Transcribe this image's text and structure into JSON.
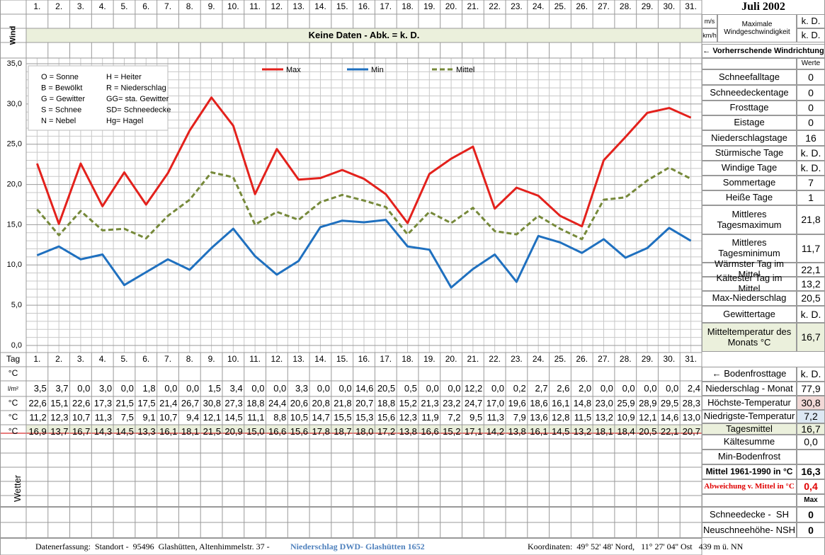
{
  "header": {
    "title": "Juli 2002",
    "wind_label": "Wind",
    "no_data": "Keine Daten - Abk. = k. D.",
    "units": [
      "m/s",
      "km/h"
    ],
    "max_wind_label": "Maximale Windgeschwindigkeit",
    "max_wind_values": [
      "k. D.",
      "k. D."
    ],
    "wind_direction": "← Vorherrschende Windrichtung"
  },
  "chart_data": {
    "type": "line",
    "categories": [
      "1.",
      "2.",
      "3.",
      "4.",
      "5.",
      "6.",
      "7.",
      "8.",
      "9.",
      "10.",
      "11.",
      "12.",
      "13.",
      "14.",
      "15.",
      "16.",
      "17.",
      "18.",
      "19.",
      "20.",
      "21.",
      "22.",
      "23.",
      "24.",
      "25.",
      "26.",
      "27.",
      "28.",
      "29.",
      "30.",
      "31."
    ],
    "ylim": [
      0,
      35
    ],
    "yticks": [
      {
        "value": 0,
        "label": "0,0"
      },
      {
        "value": 5,
        "label": "5,0"
      },
      {
        "value": 10,
        "label": "10,0"
      },
      {
        "value": 15,
        "label": "15,0"
      },
      {
        "value": 20,
        "label": "20,0"
      },
      {
        "value": 25,
        "label": "25,0"
      },
      {
        "value": 30,
        "label": "30,0"
      },
      {
        "value": 35,
        "label": "35,0"
      }
    ],
    "grid": true,
    "legend": "top",
    "series": [
      {
        "name": "Max",
        "color": "#e3211c",
        "values": [
          22.6,
          15.1,
          22.6,
          17.3,
          21.5,
          17.5,
          21.4,
          26.7,
          30.8,
          27.3,
          18.8,
          24.4,
          20.6,
          20.8,
          21.8,
          20.7,
          18.8,
          15.2,
          21.3,
          23.2,
          24.7,
          17.0,
          19.6,
          18.6,
          16.1,
          14.8,
          23.0,
          25.9,
          28.9,
          29.5,
          28.3
        ],
        "value_labels": [
          "22,6",
          "15,1",
          "22,6",
          "17,3",
          "21,5",
          "17,5",
          "21,4",
          "26,7",
          "30,8",
          "27,3",
          "18,8",
          "24,4",
          "20,6",
          "20,8",
          "21,8",
          "20,7",
          "18,8",
          "15,2",
          "21,3",
          "23,2",
          "24,7",
          "17,0",
          "19,6",
          "18,6",
          "16,1",
          "14,8",
          "23,0",
          "25,9",
          "28,9",
          "29,5",
          "28,3"
        ]
      },
      {
        "name": "Min",
        "color": "#1f70bf",
        "values": [
          11.2,
          12.3,
          10.7,
          11.3,
          7.5,
          9.1,
          10.7,
          9.4,
          12.1,
          14.5,
          11.1,
          8.8,
          10.5,
          14.7,
          15.5,
          15.3,
          15.6,
          12.3,
          11.9,
          7.2,
          9.5,
          11.3,
          7.9,
          13.6,
          12.8,
          11.5,
          13.2,
          10.9,
          12.1,
          14.6,
          13.0
        ],
        "value_labels": [
          "11,2",
          "12,3",
          "10,7",
          "11,3",
          "7,5",
          "9,1",
          "10,7",
          "9,4",
          "12,1",
          "14,5",
          "11,1",
          "8,8",
          "10,5",
          "14,7",
          "15,5",
          "15,3",
          "15,6",
          "12,3",
          "11,9",
          "7,2",
          "9,5",
          "11,3",
          "7,9",
          "13,6",
          "12,8",
          "11,5",
          "13,2",
          "10,9",
          "12,1",
          "14,6",
          "13,0"
        ]
      },
      {
        "name": "Mittel",
        "color": "#76893a",
        "line_style": "dashed",
        "values": [
          16.9,
          13.7,
          16.7,
          14.3,
          14.5,
          13.3,
          16.1,
          18.1,
          21.5,
          20.9,
          15.0,
          16.6,
          15.6,
          17.8,
          18.7,
          18.0,
          17.2,
          13.8,
          16.6,
          15.2,
          17.1,
          14.2,
          13.8,
          16.1,
          14.5,
          13.2,
          18.1,
          18.4,
          20.5,
          22.1,
          20.7
        ],
        "value_labels": [
          "16,9",
          "13,7",
          "16,7",
          "14,3",
          "14,5",
          "13,3",
          "16,1",
          "18,1",
          "21,5",
          "20,9",
          "15,0",
          "16,6",
          "15,6",
          "17,8",
          "18,7",
          "18,0",
          "17,2",
          "13,8",
          "16,6",
          "15,2",
          "17,1",
          "14,2",
          "13,8",
          "16,1",
          "14,5",
          "13,2",
          "18,1",
          "18,4",
          "20,5",
          "22,1",
          "20,7"
        ]
      }
    ],
    "legend_box": {
      "left": [
        "O = Sonne",
        "B = Bewölkt",
        "G = Gewitter",
        "S = Schnee",
        "N = Nebel"
      ],
      "right": [
        "H = Heiter",
        "R = Niederschlag",
        "GG= sta. Gewitter",
        "SD= Schneedecke",
        "Hg= Hagel"
      ]
    }
  },
  "table": {
    "row_labels": [
      "Tag",
      "°C",
      "l/m²",
      "°C",
      "°C",
      "°C"
    ],
    "precipitation": [
      "3,5",
      "3,7",
      "0,0",
      "3,0",
      "0,0",
      "1,8",
      "0,0",
      "0,0",
      "1,5",
      "3,4",
      "0,0",
      "0,0",
      "3,3",
      "0,0",
      "0,0",
      "14,6",
      "20,5",
      "0,5",
      "0,0",
      "0,0",
      "12,2",
      "0,0",
      "0,2",
      "2,7",
      "2,6",
      "2,0",
      "0,0",
      "0,0",
      "0,0",
      "0,0",
      "2,4"
    ],
    "weather_label": "Wetter"
  },
  "summary": {
    "header": "Werte",
    "items": [
      {
        "label": "Schneefalltage",
        "value": "0"
      },
      {
        "label": "Schneedeckentage",
        "value": "0"
      },
      {
        "label": "Frosttage",
        "value": "0"
      },
      {
        "label": "Eistage",
        "value": "0"
      },
      {
        "label": "Niederschlagstage",
        "value": "16"
      },
      {
        "label": "Stürmische Tage",
        "value": "k. D."
      },
      {
        "label": "Windige Tage",
        "value": "k. D."
      },
      {
        "label": "Sommertage",
        "value": "7"
      },
      {
        "label": "Heiße Tage",
        "value": "1"
      },
      {
        "label": "Mittleres Tagesmaximum",
        "value": "21,8"
      },
      {
        "label": "Mittleres Tagesminimum",
        "value": "11,7"
      },
      {
        "label": "Wärmster Tag im Mittel",
        "value": "22,1"
      },
      {
        "label": "Kältester Tag im Mittel",
        "value": "13,2"
      },
      {
        "label": "Max-Niederschlag",
        "value": "20,5"
      },
      {
        "label": "Gewittertage",
        "value": "k. D."
      },
      {
        "label": "Mitteltemperatur des Monats °C",
        "value": "16,7"
      }
    ]
  },
  "lower_summary": {
    "items": [
      {
        "label": "← Bodenfrosttage",
        "value": "k. D."
      },
      {
        "label": "Niederschlag - Monat",
        "value": "77,9"
      },
      {
        "label": "Höchste-Temperatur",
        "value": "30,8"
      },
      {
        "label": "Niedrigste-Temperatur",
        "value": "7,2"
      },
      {
        "label": "Tagesmittel",
        "value": "16,7"
      },
      {
        "label": "Kältesumme",
        "value": "0,0"
      },
      {
        "label": "Min-Bodenfrost"
      },
      {
        "label": "Mittel 1961-1990 in °C",
        "value": "16,3"
      },
      {
        "label": "Abweichung v. Mittel in °C",
        "value": "0,4"
      },
      {
        "value": "Max"
      },
      {
        "label": "Schneedecke -  SH",
        "value": "0"
      },
      {
        "label": "Neuschneehöhe- NSH",
        "value": "0"
      }
    ]
  },
  "footer": {
    "source": "Datenerfassung:  Standort -  95496  Glashütten, Altenhimmelstr. 37 -",
    "precip_source": "Niederschlag DWD- Glashütten 1652",
    "coordinates": "Koordinaten:  49° 52' 48' Nord,   11° 27' 04'' Ost   439 m ü. NN"
  }
}
